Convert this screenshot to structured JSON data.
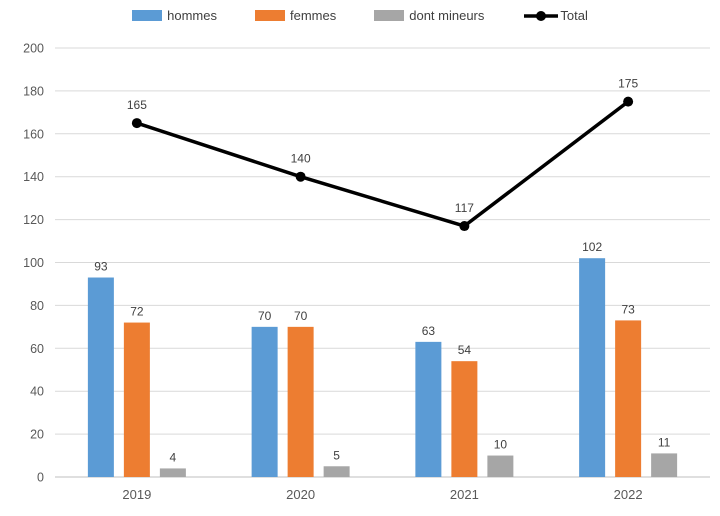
{
  "chart_data": {
    "type": "bar",
    "subtype": "grouped-bars-with-line-overlay",
    "title": "",
    "xlabel": "",
    "ylabel": "",
    "categories": [
      "2019",
      "2020",
      "2021",
      "2022"
    ],
    "series": [
      {
        "name": "hommes",
        "type": "bar",
        "color": "#5B9BD5",
        "values": [
          93,
          70,
          63,
          102
        ]
      },
      {
        "name": "femmes",
        "type": "bar",
        "color": "#ED7D31",
        "values": [
          72,
          70,
          54,
          73
        ]
      },
      {
        "name": "dont mineurs",
        "type": "bar",
        "color": "#A6A6A6",
        "values": [
          4,
          5,
          10,
          11
        ]
      },
      {
        "name": "Total",
        "type": "line",
        "color": "#000000",
        "values": [
          165,
          140,
          117,
          175
        ]
      }
    ],
    "ylim": [
      0,
      200
    ],
    "ytick_step": 20,
    "ytick_labels": [
      "0",
      "20",
      "40",
      "60",
      "80",
      "100",
      "120",
      "140",
      "160",
      "180",
      "200"
    ],
    "grid": true,
    "data_labels": true,
    "legend_position": "top"
  },
  "style_colors": {
    "gridline": "#D9D9D9",
    "axis_line": "#BFBFBF",
    "tick_label": "#595959",
    "data_label": "#404040",
    "legend_label": "#404040",
    "background": "#FFFFFF"
  }
}
